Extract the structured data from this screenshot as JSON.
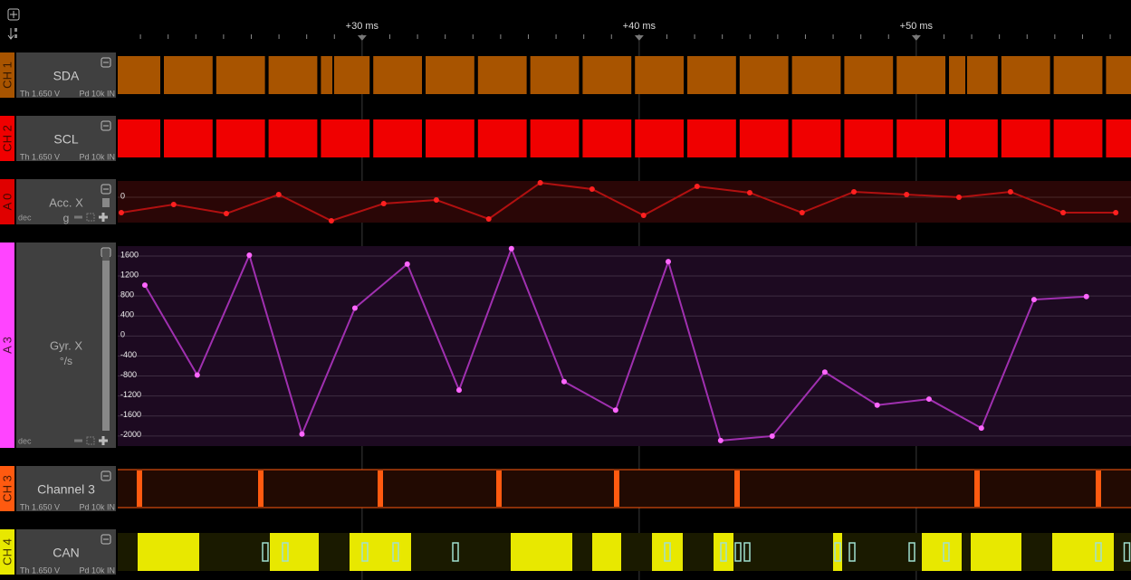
{
  "ruler": {
    "xlim": [
      21.18,
      57.75
    ],
    "xticks": [
      {
        "value": 30,
        "label": "+30 ms"
      },
      {
        "value": 40,
        "label": "+40 ms"
      },
      {
        "value": 50,
        "label": "+50 ms"
      }
    ]
  },
  "channels": [
    {
      "id": "CH 1",
      "name": "SDA",
      "threshold": "Th 1.650 V",
      "pull": "Pd 10k IN",
      "color": "#a85400"
    },
    {
      "id": "CH 2",
      "name": "SCL",
      "threshold": "Th 1.650 V",
      "pull": "Pd 10k IN",
      "color": "#f00000"
    },
    {
      "id": "A 0",
      "name": "Acc. X",
      "color": "#e00000"
    },
    {
      "id": "A 3",
      "name": "Gyr. X",
      "color": "#ff44ff"
    },
    {
      "id": "CH 3",
      "name": "Channel 3",
      "threshold": "Th 1.650 V",
      "pull": "Pd 10k IN",
      "color": "#ff5a10"
    },
    {
      "id": "CH 4",
      "name": "CAN",
      "threshold": "Th 1.650 V",
      "pull": "Pd 10k IN",
      "color": "#e8e800"
    }
  ],
  "chart_data": [
    {
      "type": "line",
      "unit": "g",
      "format": "dec",
      "color": "#b01010",
      "point_color": "#ff2020",
      "x": [
        21.31,
        23.2,
        25.1,
        26.99,
        28.89,
        30.78,
        32.68,
        34.57,
        36.43,
        38.3,
        40.16,
        42.09,
        43.99,
        45.88,
        47.75,
        49.65,
        51.54,
        53.4,
        55.3,
        57.2
      ],
      "values": [
        -0.9,
        -0.45,
        -0.95,
        0.1,
        -1.35,
        -0.4,
        -0.2,
        -1.25,
        0.75,
        0.4,
        -1.05,
        0.55,
        0.2,
        -0.9,
        0.25,
        0.1,
        -0.05,
        0.25,
        -0.9,
        -0.9
      ],
      "xlim": [
        21.18,
        57.75
      ],
      "ylim": [
        -1.45,
        0.85
      ],
      "yticks": [
        0
      ],
      "grid": true
    },
    {
      "type": "line",
      "unit": "°/s",
      "format": "dec",
      "color": "#a030b0",
      "point_color": "#ff66ff",
      "x": [
        22.16,
        24.05,
        25.93,
        27.83,
        29.74,
        31.63,
        33.5,
        35.39,
        37.29,
        39.15,
        41.05,
        42.94,
        44.8,
        46.7,
        48.59,
        50.46,
        52.35,
        54.25,
        56.14
      ],
      "values": [
        1000,
        -800,
        1600,
        -1980,
        540,
        1420,
        -1100,
        1730,
        -930,
        -1500,
        1470,
        -2110,
        -2020,
        -740,
        -1400,
        -1280,
        -1860,
        710,
        770
      ],
      "xlim": [
        21.18,
        57.75
      ],
      "ylim": [
        -2220,
        1780
      ],
      "yticks": [
        1600,
        1200,
        800,
        400,
        0,
        -400,
        -800,
        -1200,
        -1600,
        -2000
      ],
      "grid": true
    }
  ]
}
